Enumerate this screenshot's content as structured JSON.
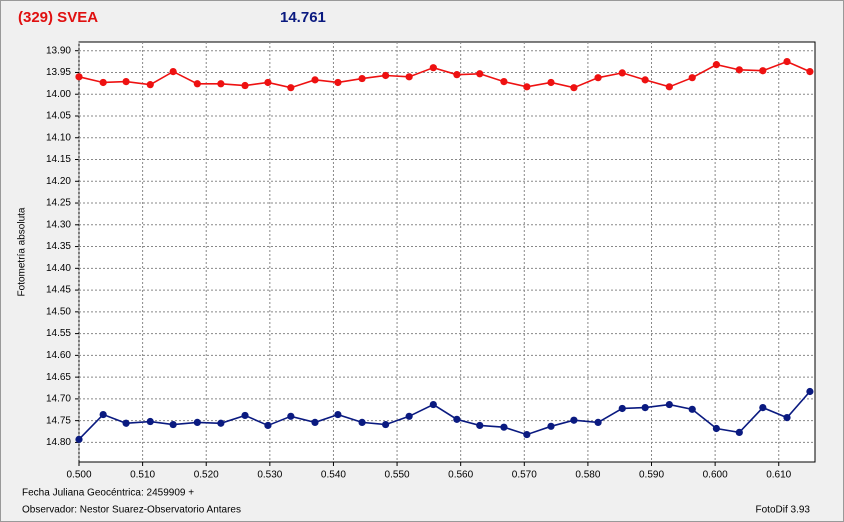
{
  "chart_data": {
    "type": "line",
    "title": "(329) SVEA",
    "subtitle": "14.761",
    "y_label": "Fotometría absoluta",
    "footer": [
      "Fecha Juliana Geocéntrica: 2459909 +",
      "Observador: Nestor Suarez-Observatorio Antares"
    ],
    "software": "FotoDif 3.93",
    "x": [
      0.5,
      0.5038,
      0.5074,
      0.5112,
      0.5148,
      0.5186,
      0.5223,
      0.5261,
      0.5297,
      0.5333,
      0.5371,
      0.5407,
      0.5445,
      0.5482,
      0.5519,
      0.5557,
      0.5594,
      0.563,
      0.5668,
      0.5704,
      0.5742,
      0.5778,
      0.5816,
      0.5854,
      0.589,
      0.5928,
      0.5964,
      0.6002,
      0.6038,
      0.6075,
      0.6113,
      0.6149
    ],
    "series": [
      {
        "color": "#ee1111",
        "values": [
          13.96,
          13.973,
          13.971,
          13.978,
          13.948,
          13.976,
          13.976,
          13.98,
          13.973,
          13.985,
          13.967,
          13.973,
          13.964,
          13.957,
          13.96,
          13.939,
          13.955,
          13.953,
          13.971,
          13.983,
          13.973,
          13.985,
          13.962,
          13.951,
          13.967,
          13.983,
          13.962,
          13.932,
          13.944,
          13.946,
          13.925,
          13.948
        ]
      },
      {
        "color": "#0a1a80",
        "values": [
          14.793,
          14.736,
          14.756,
          14.752,
          14.759,
          14.754,
          14.756,
          14.738,
          14.761,
          14.74,
          14.754,
          14.736,
          14.754,
          14.759,
          14.74,
          14.713,
          14.747,
          14.761,
          14.765,
          14.782,
          14.763,
          14.749,
          14.754,
          14.722,
          14.72,
          14.713,
          14.724,
          14.768,
          14.777,
          14.72,
          14.743,
          14.683
        ]
      }
    ],
    "xlim": [
      0.5,
      0.6157
    ],
    "ylim": [
      14.845,
      13.88
    ],
    "xticks": [
      {
        "value": 0.5,
        "label": "0.500"
      },
      {
        "value": 0.51,
        "label": "0.510"
      },
      {
        "value": 0.52,
        "label": "0.520"
      },
      {
        "value": 0.53,
        "label": "0.530"
      },
      {
        "value": 0.54,
        "label": "0.540"
      },
      {
        "value": 0.55,
        "label": "0.550"
      },
      {
        "value": 0.56,
        "label": "0.560"
      },
      {
        "value": 0.57,
        "label": "0.570"
      },
      {
        "value": 0.58,
        "label": "0.580"
      },
      {
        "value": 0.59,
        "label": "0.590"
      },
      {
        "value": 0.6,
        "label": "0.600"
      },
      {
        "value": 0.61,
        "label": "0.610"
      }
    ],
    "yticks": [
      {
        "value": 13.9,
        "label": "13.90"
      },
      13.95,
      {
        "value": 14.0,
        "label": "14.00"
      },
      14.05,
      {
        "value": 14.1,
        "label": "14.10"
      },
      14.15,
      {
        "value": 14.2,
        "label": "14.20"
      },
      14.25,
      {
        "value": 14.3,
        "label": "14.30"
      },
      14.35,
      {
        "value": 14.4,
        "label": "14.40"
      },
      14.45,
      {
        "value": 14.5,
        "label": "14.50"
      },
      14.55,
      {
        "value": 14.6,
        "label": "14.60"
      },
      14.65,
      {
        "value": 14.7,
        "label": "14.70"
      },
      14.75,
      {
        "value": 14.8,
        "label": "14.80"
      }
    ],
    "grid": true
  }
}
